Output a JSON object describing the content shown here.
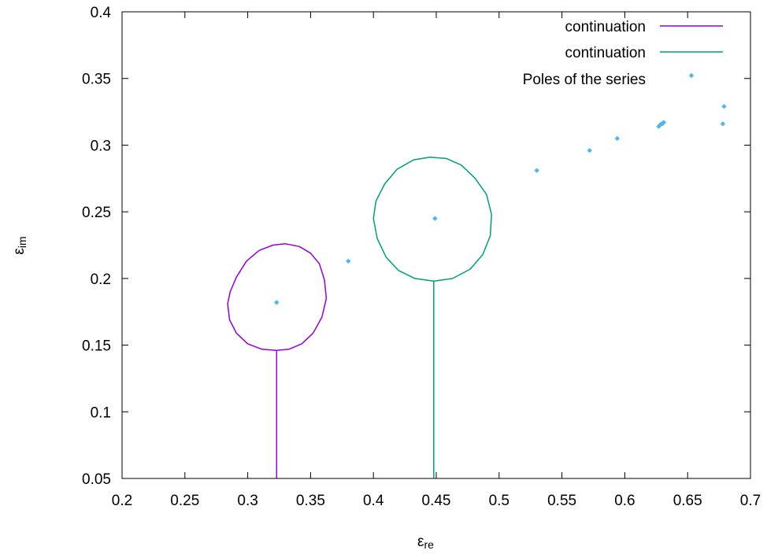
{
  "chart_data": {
    "type": "line",
    "xlabel": "ε",
    "xlabel_sub": "re",
    "ylabel": "ε",
    "ylabel_sub": "im",
    "xlim": [
      0.2,
      0.7
    ],
    "ylim": [
      0.05,
      0.4
    ],
    "xticks": [
      0.2,
      0.25,
      0.3,
      0.35,
      0.4,
      0.45,
      0.5,
      0.55,
      0.6,
      0.65,
      0.7
    ],
    "xtick_labels": [
      "0.2",
      "0.25",
      "0.3",
      "0.35",
      "0.4",
      "0.45",
      "0.5",
      "0.55",
      "0.6",
      "0.65",
      "0.7"
    ],
    "yticks": [
      0.05,
      0.1,
      0.15,
      0.2,
      0.25,
      0.3,
      0.35,
      0.4
    ],
    "ytick_labels": [
      "0.05",
      "0.1",
      "0.15",
      "0.2",
      "0.25",
      "0.3",
      "0.35",
      "0.4"
    ],
    "grid": false,
    "legend_position": "top-right",
    "series": [
      {
        "name": "continuation",
        "kind": "line",
        "color": "#9400d3",
        "x": [
          0.323,
          0.323,
          0.333,
          0.343,
          0.352,
          0.359,
          0.3625,
          0.361,
          0.357,
          0.35,
          0.341,
          0.33,
          0.32,
          0.309,
          0.299,
          0.291,
          0.286,
          0.284,
          0.2855,
          0.291,
          0.3,
          0.311,
          0.323
        ],
        "y": [
          0.05,
          0.146,
          0.147,
          0.151,
          0.159,
          0.171,
          0.185,
          0.199,
          0.211,
          0.219,
          0.224,
          0.226,
          0.225,
          0.221,
          0.213,
          0.201,
          0.19,
          0.181,
          0.169,
          0.159,
          0.151,
          0.147,
          0.146
        ]
      },
      {
        "name": "continuation",
        "kind": "line",
        "color": "#009e73",
        "x": [
          0.448,
          0.448,
          0.463,
          0.477,
          0.487,
          0.493,
          0.494,
          0.49,
          0.481,
          0.47,
          0.458,
          0.445,
          0.432,
          0.419,
          0.409,
          0.402,
          0.4,
          0.403,
          0.41,
          0.42,
          0.433,
          0.448
        ],
        "y": [
          0.05,
          0.198,
          0.2,
          0.207,
          0.218,
          0.232,
          0.248,
          0.263,
          0.275,
          0.285,
          0.29,
          0.291,
          0.289,
          0.282,
          0.271,
          0.258,
          0.245,
          0.23,
          0.216,
          0.206,
          0.2,
          0.198
        ]
      },
      {
        "name": "Poles of the series",
        "kind": "points",
        "color": "#56b4e9",
        "x": [
          0.323,
          0.38,
          0.449,
          0.53,
          0.572,
          0.594,
          0.627,
          0.628,
          0.629,
          0.63,
          0.631,
          0.678,
          0.679
        ],
        "y": [
          0.182,
          0.213,
          0.245,
          0.281,
          0.296,
          0.305,
          0.314,
          0.315,
          0.316,
          0.316,
          0.317,
          0.316,
          0.329
        ]
      }
    ]
  }
}
